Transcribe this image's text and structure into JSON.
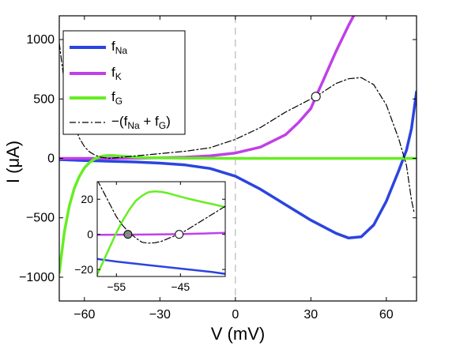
{
  "chart_data": {
    "type": "line",
    "xlabel": "V (mV)",
    "ylabel": "I (μA)",
    "xlim": [
      -70,
      72
    ],
    "ylim": [
      -1200,
      1200
    ],
    "xticks": [
      -60,
      -30,
      0,
      30,
      60
    ],
    "xtick_labels": [
      "−60",
      "−30",
      "0",
      "30",
      "60"
    ],
    "yticks": [
      -1000,
      -500,
      0,
      500,
      1000
    ],
    "ytick_labels": [
      "−1000",
      "−500",
      "0",
      "500",
      "1000"
    ],
    "grid": false,
    "vertical_reference_line": 0,
    "legend": {
      "placement": "top-left",
      "entries": [
        {
          "base": "f",
          "sub": "Na",
          "color": "#2b44e0",
          "style": "solid"
        },
        {
          "base": "f",
          "sub": "K",
          "color": "#c040e8",
          "style": "solid"
        },
        {
          "base": "f",
          "sub": "G",
          "color": "#66ee22",
          "style": "solid"
        },
        {
          "text_parts": [
            "−(f",
            "Na",
            " + f",
            "G",
            ")"
          ],
          "color": "#000000",
          "style": "dashdot"
        }
      ]
    },
    "series": [
      {
        "key": "fNa",
        "color": "#2b44e0",
        "style": "solid",
        "x": [
          -70,
          -60,
          -50,
          -40,
          -30,
          -20,
          -10,
          0,
          10,
          20,
          30,
          40,
          45,
          50,
          55,
          60,
          65,
          68,
          70,
          72
        ],
        "y": [
          -10,
          -18,
          -24,
          -30,
          -40,
          -55,
          -85,
          -150,
          -260,
          -390,
          -520,
          -630,
          -670,
          -660,
          -560,
          -360,
          -100,
          70,
          250,
          560
        ]
      },
      {
        "key": "fK",
        "color": "#c040e8",
        "style": "solid",
        "x": [
          -70,
          -60,
          -50,
          -40,
          -30,
          -20,
          -10,
          0,
          10,
          20,
          25,
          30,
          32,
          35,
          40,
          45,
          48
        ],
        "y": [
          0,
          0,
          0,
          2,
          5,
          10,
          22,
          45,
          95,
          200,
          300,
          420,
          520,
          660,
          900,
          1120,
          1240
        ]
      },
      {
        "key": "fG",
        "color": "#66ee22",
        "style": "solid",
        "x": [
          -70,
          -68,
          -66,
          -64,
          -62,
          -60,
          -58,
          -56,
          -54,
          -52,
          -50,
          -48,
          -45,
          -40,
          -35,
          -30,
          -20,
          0,
          20,
          40,
          72
        ],
        "y": [
          -960,
          -620,
          -400,
          -250,
          -150,
          -80,
          -35,
          -5,
          12,
          22,
          25,
          23,
          18,
          10,
          6,
          4,
          2,
          0,
          0,
          0,
          0
        ]
      },
      {
        "key": "neg_sum",
        "color": "#000000",
        "style": "dashdot",
        "x": [
          -70,
          -68,
          -66,
          -64,
          -62,
          -60,
          -58,
          -56,
          -54,
          -52,
          -50,
          -45,
          -40,
          -30,
          -20,
          -10,
          0,
          10,
          20,
          30,
          32,
          40,
          45,
          50,
          55,
          60,
          65,
          68,
          70,
          71
        ],
        "y": [
          970,
          640,
          420,
          270,
          170,
          100,
          55,
          30,
          12,
          5,
          0,
          10,
          20,
          40,
          60,
          90,
          160,
          260,
          390,
          500,
          520,
          630,
          670,
          680,
          620,
          450,
          160,
          -60,
          -350,
          -450
        ]
      }
    ],
    "markers": [
      {
        "x": 32,
        "y": 520,
        "fill": "#ffffff"
      }
    ],
    "inset": {
      "xlim": [
        -58,
        -38
      ],
      "ylim": [
        -24,
        30
      ],
      "xticks": [
        -55,
        -45
      ],
      "xtick_labels": [
        "−55",
        "−45"
      ],
      "yticks": [
        -20,
        0,
        20
      ],
      "ytick_labels": [
        "−20",
        "0",
        "20"
      ],
      "series": [
        {
          "key": "fNa",
          "color": "#2b44e0",
          "style": "solid",
          "x": [
            -58,
            -55,
            -50,
            -45,
            -40,
            -38
          ],
          "y": [
            -14,
            -15.5,
            -17.5,
            -19.5,
            -21.5,
            -22.5
          ]
        },
        {
          "key": "fK",
          "color": "#c040e8",
          "style": "solid",
          "x": [
            -58,
            -50,
            -45,
            -40,
            -38
          ],
          "y": [
            -0.3,
            -0.1,
            0.1,
            0.6,
            0.9
          ]
        },
        {
          "key": "fG",
          "color": "#66ee22",
          "style": "solid",
          "x": [
            -58,
            -57,
            -56,
            -55,
            -54,
            -53,
            -52,
            -51,
            -50,
            -49,
            -48,
            -47,
            -46,
            -45,
            -44,
            -42,
            -40,
            -38
          ],
          "y": [
            -23,
            -15,
            -7,
            1,
            8,
            14,
            19,
            22,
            24,
            24.5,
            24.2,
            23.5,
            22.5,
            21.5,
            20.5,
            18.8,
            17.2,
            15.5
          ]
        },
        {
          "key": "neg_sum",
          "color": "#000000",
          "style": "dashdot",
          "x": [
            -58,
            -57,
            -56,
            -55,
            -54,
            -53,
            -52,
            -51,
            -50,
            -49,
            -48,
            -47,
            -46,
            -45,
            -44,
            -42,
            -40,
            -38
          ],
          "y": [
            31,
            24,
            17,
            10,
            5,
            1,
            -2,
            -4.5,
            -5,
            -4.8,
            -4,
            -2.5,
            -1,
            0.5,
            2.5,
            7,
            11.5,
            16
          ]
        }
      ],
      "markers": [
        {
          "x": -53.2,
          "y": 0,
          "fill": "#888888"
        },
        {
          "x": -45.2,
          "y": 0,
          "fill": "#ffffff"
        }
      ]
    }
  }
}
